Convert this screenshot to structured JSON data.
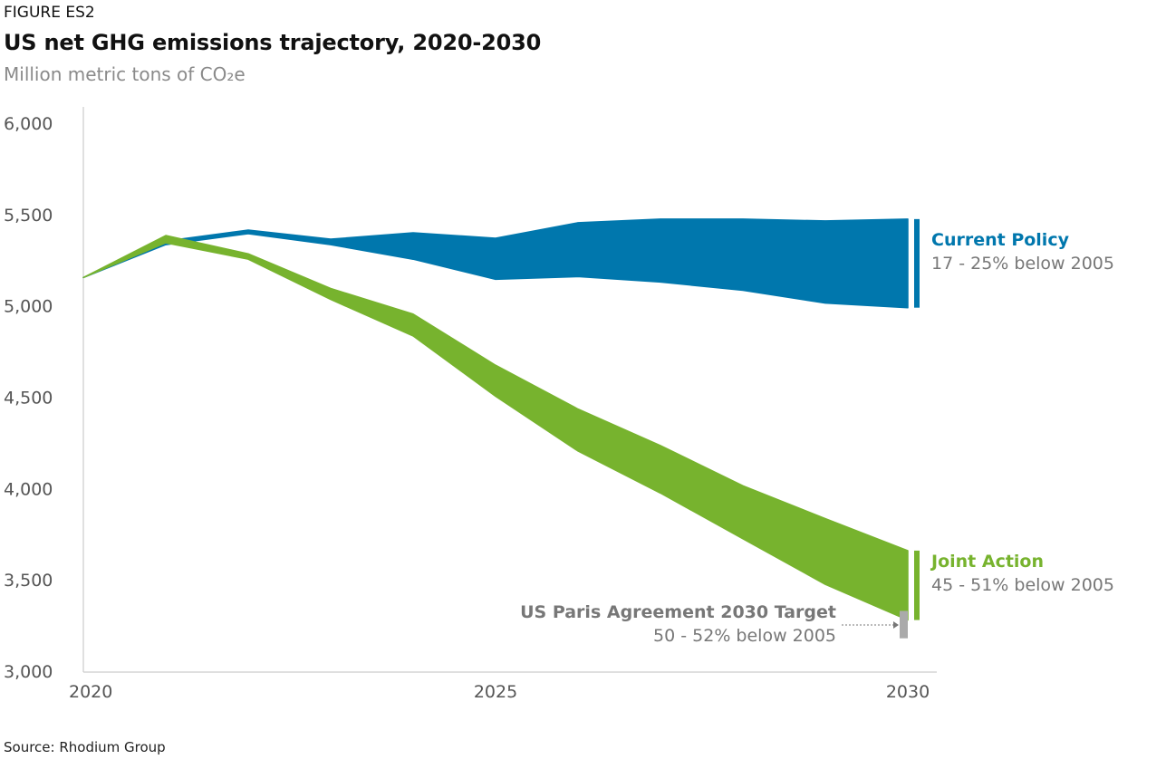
{
  "header": {
    "figure_label": "FIGURE ES2",
    "title": "US net GHG emissions trajectory, 2020-2030",
    "subtitle": "Million metric tons of CO₂e"
  },
  "source": "Source: Rhodium Group",
  "colors": {
    "current_policy": "#0077ad",
    "joint_action": "#77b32e",
    "paris_target": "#aaaaaa",
    "axis": "#cccccc"
  },
  "chart_data": {
    "type": "area",
    "xlim": [
      2020,
      2030
    ],
    "ylim": [
      3000,
      6000
    ],
    "x_ticks": [
      {
        "value": 2020,
        "label": "2020"
      },
      {
        "value": 2025,
        "label": "2025"
      },
      {
        "value": 2030,
        "label": "2030"
      }
    ],
    "y_ticks": [
      {
        "value": 3000,
        "label": "3,000"
      },
      {
        "value": 3500,
        "label": "3,500"
      },
      {
        "value": 4000,
        "label": "4,000"
      },
      {
        "value": 4500,
        "label": "4,500"
      },
      {
        "value": 5000,
        "label": "5,000"
      },
      {
        "value": 5500,
        "label": "5,500"
      },
      {
        "value": 6000,
        "label": "6,000"
      }
    ],
    "grid": false,
    "series": [
      {
        "key": "current_policy",
        "name": "Current Policy",
        "range_label": "17 - 25% below 2005",
        "x": [
          2020,
          2021,
          2022,
          2023,
          2024,
          2025,
          2026,
          2027,
          2028,
          2029,
          2030
        ],
        "high": [
          5160,
          5360,
          5420,
          5370,
          5405,
          5375,
          5460,
          5480,
          5480,
          5470,
          5480
        ],
        "low": [
          5160,
          5340,
          5400,
          5340,
          5260,
          5150,
          5165,
          5135,
          5090,
          5020,
          4995
        ]
      },
      {
        "key": "joint_action",
        "name": "Joint Action",
        "range_label": "45 - 51% below 2005",
        "x": [
          2020,
          2021,
          2022,
          2023,
          2024,
          2025,
          2026,
          2027,
          2028,
          2029,
          2030
        ],
        "high": [
          5160,
          5390,
          5290,
          5100,
          4960,
          4680,
          4440,
          4240,
          4020,
          3840,
          3665
        ],
        "low": [
          5160,
          5350,
          5260,
          5040,
          4840,
          4510,
          4210,
          3980,
          3730,
          3480,
          3285
        ]
      }
    ],
    "annotations": [
      {
        "key": "paris_target",
        "title": "US Paris Agreement 2030 Target",
        "range_label": "50 - 52% below 2005",
        "low": 3185,
        "high": 3335
      }
    ]
  }
}
